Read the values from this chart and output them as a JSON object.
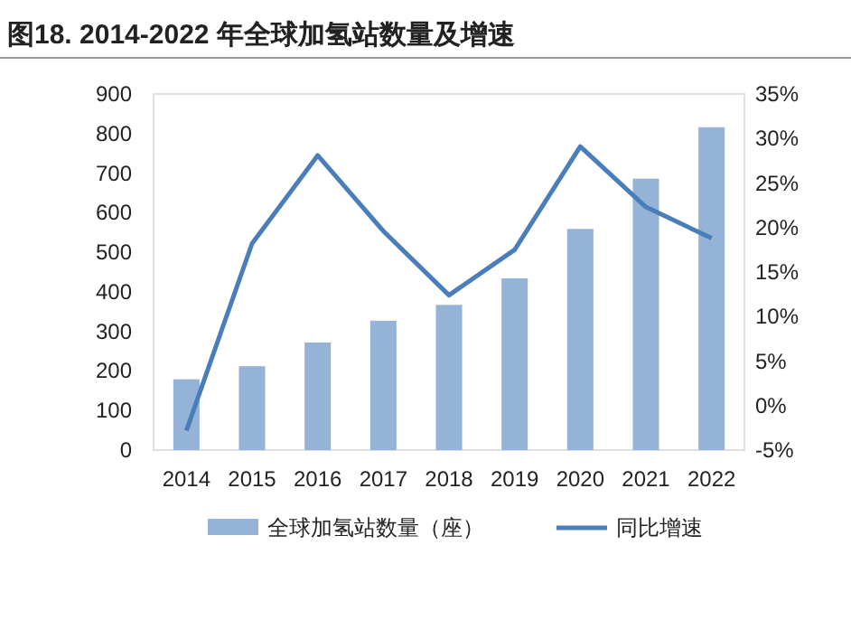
{
  "chart_data": {
    "type": "bar",
    "title": "图18. 2014-2022 年全球加氢站数量及增速",
    "categories": [
      "2014",
      "2015",
      "2016",
      "2017",
      "2018",
      "2019",
      "2020",
      "2021",
      "2022"
    ],
    "series": [
      {
        "name": "全球加氢站数量（座）",
        "color": "#95b3d7",
        "values": [
          179,
          212,
          272,
          327,
          367,
          434,
          559,
          686,
          816
        ]
      },
      {
        "name": "同比增速",
        "type": "line",
        "axis": "y2",
        "color": "#4a7ebb",
        "values": [
          -2.8,
          18.2,
          28.1,
          19.6,
          12.4,
          17.5,
          29.1,
          22.3,
          18.8
        ]
      }
    ],
    "ylim": [
      0,
      900
    ],
    "yticks": [
      0,
      100,
      200,
      300,
      400,
      500,
      600,
      700,
      800,
      900
    ],
    "y2lim": [
      -5,
      35
    ],
    "y2ticks": [
      {
        "value": -5,
        "label": "-5%"
      },
      {
        "value": 0,
        "label": "0%"
      },
      {
        "value": 5,
        "label": "5%"
      },
      {
        "value": 10,
        "label": "10%"
      },
      {
        "value": 15,
        "label": "15%"
      },
      {
        "value": 20,
        "label": "20%"
      },
      {
        "value": 25,
        "label": "25%"
      },
      {
        "value": 30,
        "label": "30%"
      },
      {
        "value": 35,
        "label": "35%"
      }
    ],
    "legend": "bottom"
  }
}
